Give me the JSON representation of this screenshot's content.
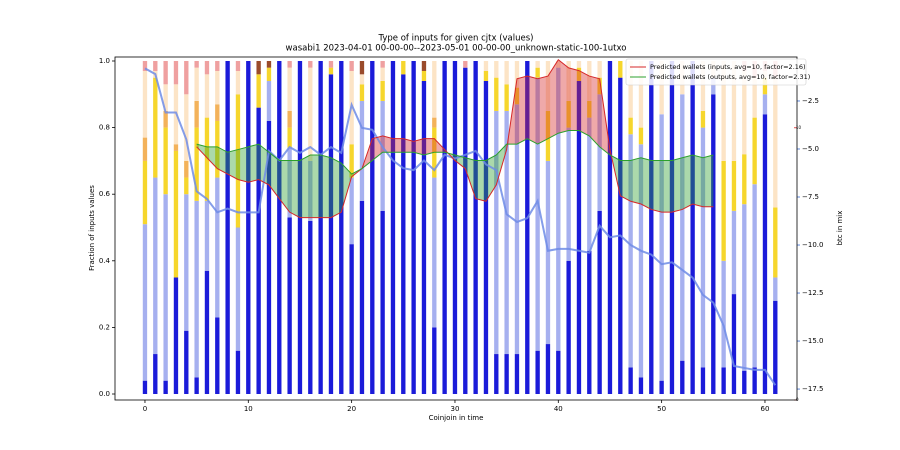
{
  "chart_data": {
    "type": "bar",
    "stacked": true,
    "title": "Type of inputs for given cjtx (values)",
    "subtitle": "wasabi1 2023-04-01 00-00-00--2023-05-01 00-00-00_unknown-static-100-1utxo",
    "xlabel": "Coinjoin in time",
    "ylabel": "Fraction of inputs values",
    "y2label": "btc in mix",
    "x": [
      0,
      1,
      2,
      3,
      4,
      5,
      6,
      7,
      8,
      9,
      10,
      11,
      12,
      13,
      14,
      15,
      16,
      17,
      18,
      19,
      20,
      21,
      22,
      23,
      24,
      25,
      26,
      27,
      28,
      29,
      30,
      31,
      32,
      33,
      34,
      35,
      36,
      37,
      38,
      39,
      40,
      41,
      42,
      43,
      44,
      45,
      46,
      47,
      48,
      49,
      50,
      51,
      52,
      53,
      54,
      55,
      56,
      57,
      58,
      59,
      60,
      61
    ],
    "xlim": [
      -2.9,
      63.1
    ],
    "xticks": [
      0,
      10,
      20,
      30,
      40,
      50,
      60
    ],
    "ylim": [
      -0.018,
      1.012
    ],
    "yticks": [
      {
        "value": 0,
        "label": "0.0"
      },
      {
        "value": 0.2,
        "label": "0.2"
      },
      {
        "value": 0.4,
        "label": "0.4"
      },
      {
        "value": 0.6,
        "label": "0.6"
      },
      {
        "value": 0.8,
        "label": "0.8"
      },
      {
        "value": 1,
        "label": "1.0"
      }
    ],
    "y2lim": [
      -18.07,
      -0.21
    ],
    "y2ticks": [
      {
        "value": -2.5,
        "label": "−2.5"
      },
      {
        "value": -5,
        "label": "−5.0"
      },
      {
        "value": -7.5,
        "label": "−7.5"
      },
      {
        "value": -10,
        "label": "−10.0"
      },
      {
        "value": -12.5,
        "label": "−12.5"
      },
      {
        "value": -15,
        "label": "−15.0"
      },
      {
        "value": -17.5,
        "label": "−17.5"
      }
    ],
    "y2color": "#3a6ed8",
    "y3lim": [
      0,
      12.6
    ],
    "y3ticks": [
      0,
      10
    ],
    "y3color": "#d62728",
    "legend": "upper right",
    "series": [
      {
        "type": "bar",
        "color": "#1b1bd9",
        "values": [
          0.04,
          0.12,
          0.04,
          0.35,
          0.19,
          0.05,
          0.37,
          0.23,
          1,
          0.13,
          1,
          0.86,
          0.82,
          1,
          0.53,
          1,
          0.52,
          1,
          0.96,
          1,
          0.45,
          0.58,
          1,
          0.55,
          1,
          0.96,
          1,
          0.94,
          0.2,
          1,
          1,
          0.98,
          1,
          0.94,
          0.12,
          0.12,
          0.12,
          1,
          0.13,
          0.15,
          0.13,
          0.4,
          0.94,
          0.43,
          0.55,
          1,
          0.95,
          0.08,
          0.05,
          1,
          0.04,
          1,
          0.1,
          1,
          0.08,
          0.9,
          0.08,
          0.3,
          0.07,
          0.08,
          0.84,
          0.28
        ]
      },
      {
        "type": "bar",
        "color": "#a6b0ef",
        "values": [
          0.47,
          0.53,
          0.56,
          0,
          0.41,
          0.53,
          0.21,
          0.42,
          0,
          0.37,
          0,
          0,
          0.12,
          0,
          0.21,
          0,
          0.18,
          0,
          0,
          0,
          0.2,
          0.3,
          0,
          0.33,
          0,
          0,
          0,
          0,
          0.45,
          0,
          0,
          0,
          0,
          0,
          0.73,
          0.73,
          0.75,
          0,
          0.82,
          0.55,
          0.85,
          0.4,
          0,
          0.4,
          0.35,
          0,
          0,
          0.7,
          0.7,
          0,
          0.8,
          0,
          0.8,
          0,
          0.72,
          0.05,
          0.32,
          0.25,
          0.5,
          0.55,
          0.06,
          0.07
        ]
      },
      {
        "type": "bar",
        "color": "#f6d62c",
        "values": [
          0.19,
          0.3,
          0.2,
          0.38,
          0.05,
          0.22,
          0.25,
          0.17,
          0,
          0.4,
          0,
          0.1,
          0.04,
          0,
          0.06,
          0,
          0,
          0,
          0.02,
          0,
          0.1,
          0.05,
          0,
          0.06,
          0,
          0.04,
          0,
          0.03,
          0.15,
          0,
          0,
          0,
          0,
          0.03,
          0.1,
          0.08,
          0.05,
          0,
          0.03,
          0.15,
          0,
          0.08,
          0.04,
          0.05,
          0.05,
          0,
          0.05,
          0.05,
          0.05,
          0,
          0,
          0,
          0,
          0,
          0.05,
          0,
          0.3,
          0.15,
          0.15,
          0.2,
          0.05,
          0.21
        ]
      },
      {
        "type": "bar",
        "color": "#f3b25a",
        "values": [
          0.07,
          0,
          0.05,
          0.02,
          0.05,
          0.08,
          0,
          0.05,
          0,
          0,
          0,
          0,
          0,
          0,
          0.05,
          0,
          0,
          0,
          0,
          0,
          0,
          0,
          0,
          0,
          0,
          0,
          0,
          0,
          0.03,
          0,
          0,
          0,
          0,
          0,
          0,
          0,
          0,
          0,
          0,
          0,
          0,
          0,
          0,
          0,
          0,
          0,
          0,
          0,
          0,
          0,
          0,
          0,
          0,
          0,
          0,
          0,
          0,
          0,
          0,
          0,
          0,
          0
        ]
      },
      {
        "type": "bar",
        "color": "#fce4c6",
        "values": [
          0.2,
          0.02,
          0.08,
          0.18,
          0.2,
          0.1,
          0.13,
          0.1,
          0,
          0.07,
          0,
          0,
          0,
          0,
          0.13,
          0,
          0.28,
          0,
          0,
          0,
          0.22,
          0.03,
          0,
          0.04,
          0,
          0,
          0,
          0,
          0.17,
          0,
          0,
          0,
          0,
          0.03,
          0.05,
          0.07,
          0.08,
          0,
          0.02,
          0.15,
          0.02,
          0.12,
          0.02,
          0.12,
          0.05,
          0,
          0,
          0.17,
          0.2,
          0,
          0.16,
          0,
          0.1,
          0,
          0.15,
          0.05,
          0.3,
          0.3,
          0.25,
          0.12,
          0.02,
          0.39
        ]
      },
      {
        "type": "bar",
        "color": "#9a4b2b",
        "values": [
          0,
          0,
          0,
          0,
          0,
          0,
          0,
          0,
          0,
          0,
          0,
          0.04,
          0.02,
          0,
          0,
          0,
          0,
          0,
          0,
          0,
          0,
          0.04,
          0,
          0,
          0,
          0,
          0,
          0.03,
          0,
          0,
          0,
          0,
          0,
          0,
          0,
          0,
          0,
          0,
          0,
          0,
          0,
          0,
          0,
          0,
          0,
          0,
          0,
          0,
          0,
          0,
          0,
          0,
          0,
          0,
          0,
          0,
          0,
          0,
          0,
          0,
          0,
          0
        ]
      },
      {
        "type": "bar",
        "color": "#efa0a0",
        "values": [
          0.03,
          0.03,
          0.07,
          0.07,
          0.1,
          0.02,
          0.04,
          0.03,
          0,
          0.03,
          0,
          0,
          0,
          0,
          0.02,
          0,
          0.02,
          0,
          0.02,
          0,
          0.03,
          0,
          0,
          0.02,
          0,
          0,
          0,
          0,
          0,
          0,
          0,
          0.02,
          0,
          0,
          0,
          0,
          0,
          0,
          0,
          0,
          0,
          0,
          0,
          0,
          0,
          0,
          0,
          0,
          0,
          0,
          0,
          0,
          0,
          0,
          0,
          0,
          0,
          0,
          0.03,
          0.05,
          0.03,
          0.05
        ]
      },
      {
        "type": "line",
        "axis": "y2",
        "color": "#6e8ce6",
        "values": [
          -0.8,
          -1.1,
          -3.1,
          -3.1,
          -4.5,
          -7.2,
          -7.6,
          -8.3,
          -8.1,
          -8.3,
          -8.3,
          -8.3,
          -5.1,
          -5.6,
          -4.9,
          -5.2,
          -4.9,
          -5.3,
          -4.9,
          -5.2,
          -2.7,
          -3.9,
          -4.0,
          -4.9,
          -5.6,
          -6.0,
          -6.1,
          -5.6,
          -6.1,
          -5.3,
          -5.5,
          -5.3,
          -5.1,
          -5.8,
          -6.1,
          -8.4,
          -8.8,
          -8.6,
          -7.7,
          -10.3,
          -10.2,
          -10.2,
          -10.3,
          -10.4,
          -9.0,
          -9.6,
          -9.5,
          -10.0,
          -10.3,
          -10.5,
          -11.0,
          -10.9,
          -11.3,
          -11.7,
          -12.6,
          -13.0,
          -14.2,
          -16.3,
          -16.4,
          -16.5,
          -16.5,
          -17.3
        ]
      },
      {
        "type": "line",
        "axis": "y3",
        "name": "Predicted wallets (inputs, avg=10, factor=2.16)",
        "color": "#d62728",
        "values": [
          null,
          null,
          null,
          null,
          null,
          9.3,
          8.9,
          8.5,
          8.3,
          8.1,
          8.0,
          8.1,
          7.9,
          7.4,
          6.9,
          6.7,
          6.7,
          6.7,
          6.7,
          6.9,
          8.2,
          8.5,
          9.6,
          9.7,
          9.6,
          9.6,
          9.5,
          9.6,
          9.6,
          9.2,
          8.8,
          8.5,
          7.4,
          7.3,
          7.9,
          9.2,
          11.8,
          11.9,
          11.8,
          11.9,
          12.5,
          12.2,
          12.1,
          11.9,
          11.8,
          9.2,
          7.5,
          7.3,
          7.2,
          7.0,
          6.9,
          6.9,
          7.0,
          7.2,
          7.1,
          7.1,
          null,
          null,
          null,
          null,
          null,
          null
        ]
      },
      {
        "type": "line",
        "axis": "y3",
        "name": "Predicted wallets (outputs, avg=10, factor=2.31)",
        "color": "#2ca02c",
        "values": [
          null,
          null,
          null,
          null,
          null,
          9.4,
          9.3,
          9.3,
          9.1,
          9.2,
          9.3,
          9.4,
          9.1,
          8.8,
          8.8,
          8.8,
          9.0,
          9.0,
          8.9,
          8.7,
          8.3,
          8.5,
          8.8,
          9.1,
          9.1,
          9.1,
          9.1,
          9.0,
          9.1,
          9.1,
          9.0,
          8.9,
          8.8,
          8.8,
          9.0,
          9.4,
          9.4,
          9.6,
          9.4,
          9.6,
          9.8,
          9.9,
          9.9,
          9.7,
          9.3,
          9.0,
          8.8,
          8.8,
          8.9,
          8.8,
          8.8,
          8.8,
          8.9,
          9.0,
          8.9,
          9.0,
          null,
          null,
          null,
          null,
          null,
          null
        ]
      }
    ]
  }
}
